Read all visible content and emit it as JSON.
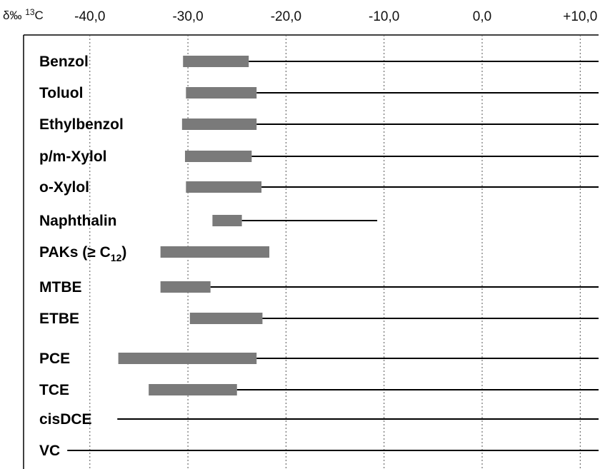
{
  "chart_data": {
    "type": "bar",
    "title": "",
    "xlabel_delta": "δ‰",
    "xlabel_isotope": "13",
    "xlabel_element": "C",
    "x_ticks": [
      -40,
      -30,
      -20,
      -10,
      0,
      10
    ],
    "x_tick_labels": [
      "-40,0",
      "-30,0",
      "-20,0",
      "-10,0",
      "0,0",
      "+10,0"
    ],
    "xlim": [
      -44,
      12
    ],
    "grid": "dotted vertical",
    "range_bar_color": "#7a7a7a",
    "line_color": "#000000",
    "categories": [
      {
        "label": "Benzol",
        "bar": [
          -30.5,
          -23.8
        ],
        "line_end": 12
      },
      {
        "label": "Toluol",
        "bar": [
          -30.2,
          -23.0
        ],
        "line_end": 12
      },
      {
        "label": "Ethylbenzol",
        "bar": [
          -30.6,
          -23.0
        ],
        "line_end": 12
      },
      {
        "label": "p/m-Xylol",
        "bar": [
          -30.3,
          -23.5
        ],
        "line_end": 12
      },
      {
        "label": "o-Xylol",
        "bar": [
          -30.2,
          -22.5
        ],
        "line_end": 12
      },
      {
        "label": "Naphthalin",
        "bar": [
          -27.5,
          -24.5
        ],
        "line_end": -10.7
      },
      {
        "label": "PAKs (≥ C",
        "label_sub": "12",
        "label_suffix": ")",
        "bar": [
          -32.8,
          -21.7
        ],
        "line_end": null
      },
      {
        "label": "MTBE",
        "bar": [
          -32.8,
          -27.7
        ],
        "line_end": 12
      },
      {
        "label": "ETBE",
        "bar": [
          -29.8,
          -22.4
        ],
        "line_end": 12
      },
      {
        "label": "PCE",
        "bar": [
          -37.1,
          -23.0
        ],
        "line_end": 12
      },
      {
        "label": "TCE",
        "bar": [
          -34.0,
          -25.0
        ],
        "line_end": 12
      },
      {
        "label": "cisDCE",
        "bar": null,
        "line_start": -37.2,
        "line_end": 12
      },
      {
        "label": "VC",
        "bar": null,
        "line_start": -42.3,
        "line_end": 12
      }
    ]
  }
}
